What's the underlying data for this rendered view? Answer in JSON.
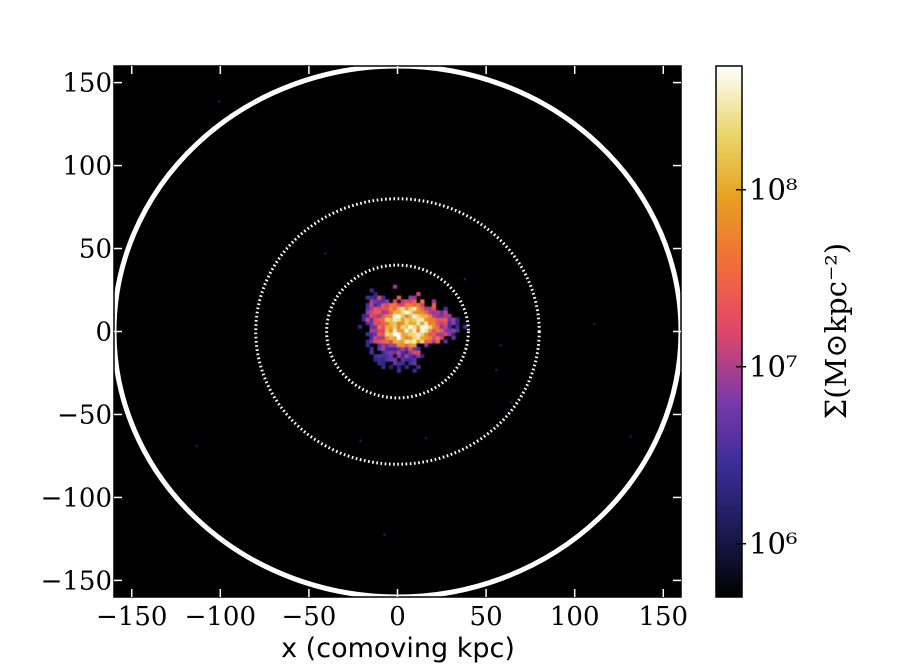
{
  "chart_data": {
    "type": "heatmap",
    "title": "",
    "xlabel": "x (comoving kpc)",
    "ylabel": "",
    "xlim": [
      -160,
      160
    ],
    "ylim": [
      -160,
      160
    ],
    "x_ticks": [
      -150,
      -100,
      -50,
      0,
      50,
      100,
      150
    ],
    "y_ticks": [
      -150,
      -100,
      -50,
      0,
      50,
      100,
      150
    ],
    "x_tick_labels": [
      "−150",
      "−100",
      "−50",
      "0",
      "50",
      "100",
      "150"
    ],
    "y_tick_labels": [
      "−150",
      "−100",
      "−50",
      "0",
      "50",
      "100",
      "150"
    ],
    "background_color": "#000000",
    "colormap": "CMRmap",
    "colorbar": {
      "label": "Σ(M⊙kpc⁻²)",
      "scale": "log",
      "range": [
        500000,
        500000000
      ],
      "ticks": [
        1000000,
        10000000,
        100000000
      ],
      "tick_labels": [
        "10⁶",
        "10⁷",
        "10⁸"
      ]
    },
    "circles": [
      {
        "radius": 160,
        "style": "solid",
        "color": "#ffffff"
      },
      {
        "radius": 80,
        "style": "dotted",
        "color": "#ffffff"
      },
      {
        "radius": 40,
        "style": "dotted",
        "color": "#ffffff"
      }
    ],
    "blob": {
      "center": [
        0,
        0
      ],
      "extent_kpc": 40,
      "peak_value": 300000000,
      "peak_offset": [
        5,
        2
      ]
    }
  }
}
